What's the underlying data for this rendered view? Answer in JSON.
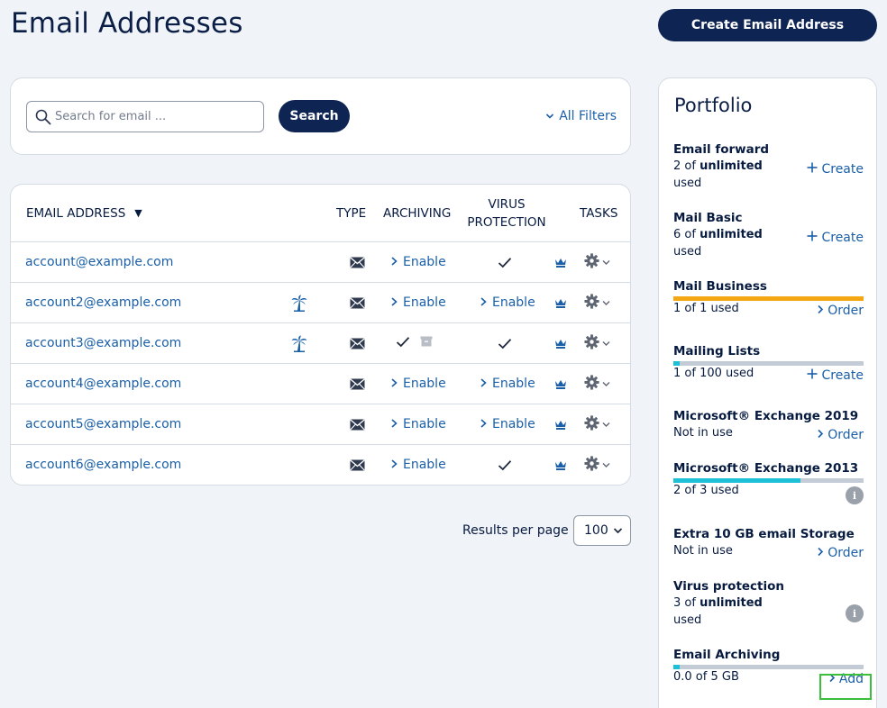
{
  "page": {
    "title": "Email Addresses",
    "create_button": "Create Email Address"
  },
  "search": {
    "placeholder": "Search for email ...",
    "button": "Search",
    "filters_link": "All Filters"
  },
  "table": {
    "columns": {
      "email": "EMAIL ADDRESS",
      "type": "TYPE",
      "archiving": "ARCHIVING",
      "virus_line1": "VIRUS",
      "virus_line2": "PROTECTION",
      "tasks": "TASKS"
    },
    "rows": [
      {
        "email": "account@example.com",
        "vacation": false,
        "archiving": "Enable",
        "virus": "check"
      },
      {
        "email": "account2@example.com",
        "vacation": true,
        "archiving": "Enable",
        "virus": "Enable"
      },
      {
        "email": "account3@example.com",
        "vacation": true,
        "archiving": "check-archive",
        "virus": "check"
      },
      {
        "email": "account4@example.com",
        "vacation": false,
        "archiving": "Enable",
        "virus": "Enable"
      },
      {
        "email": "account5@example.com",
        "vacation": false,
        "archiving": "Enable",
        "virus": "Enable"
      },
      {
        "email": "account6@example.com",
        "vacation": false,
        "archiving": "Enable",
        "virus": "check"
      }
    ],
    "icons": {
      "vacation": "palm-tree-icon",
      "type": "envelope-icon",
      "premium": "crown-icon",
      "tasks": "gear-icon"
    }
  },
  "pagination": {
    "label": "Results per page",
    "value": "100"
  },
  "portfolio": {
    "title": "Portfolio",
    "items": [
      {
        "name": "Email forward",
        "usage_pre": "2 of ",
        "usage_bold": "unlimited",
        "usage_post": " used",
        "action": "Create",
        "action_icon": "plus-icon"
      },
      {
        "name": "Mail Basic",
        "usage_pre": "6 of ",
        "usage_bold": "unlimited",
        "usage_post": " used",
        "action": "Create",
        "action_icon": "plus-icon"
      },
      {
        "name": "Mail Business",
        "usage": "1 of 1 used",
        "action": "Order",
        "action_icon": "chevron-right-icon",
        "fill": 1.0,
        "color": "#f3a712"
      },
      {
        "name": "Mailing Lists",
        "usage": "1 of 100 used",
        "action": "Create",
        "action_icon": "plus-icon",
        "fill": 0.01,
        "color": "#1ec0d8"
      },
      {
        "name": "Microsoft® Exchange 2019",
        "usage": "Not in use",
        "action": "Order",
        "action_icon": "chevron-right-icon"
      },
      {
        "name": "Microsoft® Exchange 2013",
        "usage": "2 of 3 used",
        "action_icon": "info-icon",
        "fill": 0.667,
        "color": "#1ec0d8"
      },
      {
        "name": "Extra 10 GB email Storage",
        "usage": "Not in use",
        "action": "Order",
        "action_icon": "chevron-right-icon"
      },
      {
        "name": "Virus protection",
        "usage_pre": "3 of ",
        "usage_bold": "unlimited",
        "usage_post": " used",
        "action_icon": "info-icon"
      },
      {
        "name": "Email Archiving",
        "usage": "0.0 of 5 GB",
        "action": "Add",
        "action_icon": "chevron-right-icon",
        "fill": 0.01,
        "color": "#1ec0d8"
      }
    ],
    "info_glyph": "i"
  },
  "colors": {
    "navy": "#0e2453",
    "link": "#1a5fa8",
    "highlight": "#3cc03c"
  }
}
